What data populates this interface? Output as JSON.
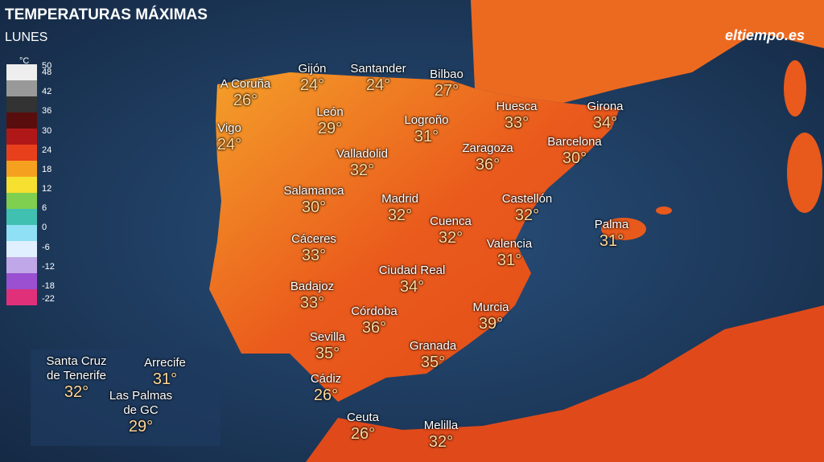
{
  "header": {
    "title": "TEMPERATURAS MÁXIMAS",
    "subtitle": "LUNES"
  },
  "logo": "eltiempo.es",
  "legend": {
    "unit": "°C",
    "ticks": [
      50,
      48,
      42,
      36,
      30,
      24,
      18,
      12,
      6,
      0,
      -6,
      -12,
      -18,
      -22
    ]
  },
  "cities": [
    {
      "name": [
        "A Coruña"
      ],
      "temp": "26°"
    },
    {
      "name": [
        "Gijón"
      ],
      "temp": "24°"
    },
    {
      "name": [
        "Santander"
      ],
      "temp": "24°"
    },
    {
      "name": [
        "Bilbao"
      ],
      "temp": "27°"
    },
    {
      "name": [
        "Vigo"
      ],
      "temp": "24°"
    },
    {
      "name": [
        "León"
      ],
      "temp": "29°"
    },
    {
      "name": [
        "Logroño"
      ],
      "temp": "31°"
    },
    {
      "name": [
        "Huesca"
      ],
      "temp": "33°"
    },
    {
      "name": [
        "Girona"
      ],
      "temp": "34°"
    },
    {
      "name": [
        "Valladolid"
      ],
      "temp": "32°"
    },
    {
      "name": [
        "Zaragoza"
      ],
      "temp": "36°"
    },
    {
      "name": [
        "Barcelona"
      ],
      "temp": "30°"
    },
    {
      "name": [
        "Salamanca"
      ],
      "temp": "30°"
    },
    {
      "name": [
        "Madrid"
      ],
      "temp": "32°"
    },
    {
      "name": [
        "Castellón"
      ],
      "temp": "32°"
    },
    {
      "name": [
        "Palma"
      ],
      "temp": "31°"
    },
    {
      "name": [
        "Cuenca"
      ],
      "temp": "32°"
    },
    {
      "name": [
        "Cáceres"
      ],
      "temp": "33°"
    },
    {
      "name": [
        "Valencia"
      ],
      "temp": "31°"
    },
    {
      "name": [
        "Ciudad Real"
      ],
      "temp": "34°"
    },
    {
      "name": [
        "Badajoz"
      ],
      "temp": "33°"
    },
    {
      "name": [
        "Murcia"
      ],
      "temp": "39°"
    },
    {
      "name": [
        "Córdoba"
      ],
      "temp": "36°"
    },
    {
      "name": [
        "Sevilla"
      ],
      "temp": "35°"
    },
    {
      "name": [
        "Granada"
      ],
      "temp": "35°"
    },
    {
      "name": [
        "Cádiz"
      ],
      "temp": "26°"
    },
    {
      "name": [
        "Ceuta"
      ],
      "temp": "26°"
    },
    {
      "name": [
        "Melilla"
      ],
      "temp": "32°"
    },
    {
      "name": [
        "Santa Cruz",
        "de Tenerife"
      ],
      "temp": "32°"
    },
    {
      "name": [
        "Arrecife"
      ],
      "temp": "31°"
    },
    {
      "name": [
        "Las Palmas",
        "de GC"
      ],
      "temp": "29°"
    }
  ]
}
